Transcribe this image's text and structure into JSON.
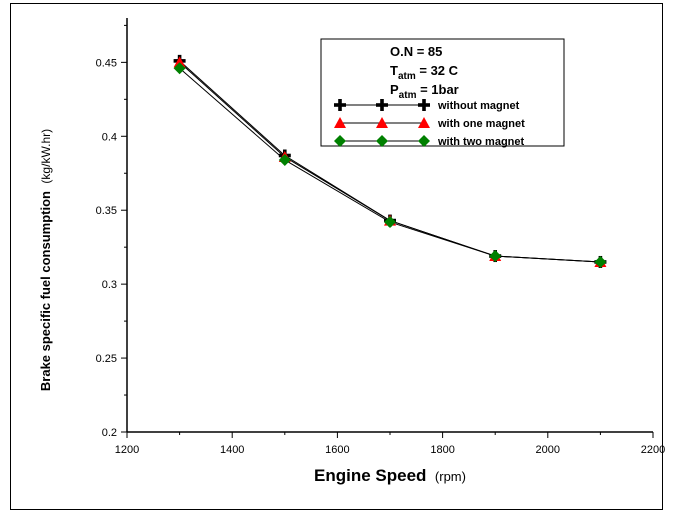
{
  "chart_data": {
    "type": "line",
    "xlabel": "Engine Speed",
    "xlabel_unit": "(rpm)",
    "ylabel": "Brake specific fuel consumption",
    "ylabel_unit": "(kg/kW.hr)",
    "xlim": [
      1200,
      2200
    ],
    "ylim": [
      0.2,
      0.48
    ],
    "xticks": [
      1200,
      1400,
      1600,
      1800,
      2000,
      2200
    ],
    "xtick_labels": [
      "1200",
      "1400",
      "1600",
      "1800",
      "2000",
      "2200"
    ],
    "yticks": [
      0.2,
      0.25,
      0.3,
      0.35,
      0.4,
      0.45
    ],
    "ytick_labels": [
      "0.2",
      "0.25",
      "0.3",
      "0.35",
      "0.4",
      "0.45"
    ],
    "grid": false,
    "legend_position": "top-right",
    "legend_header": {
      "on": "O.N = 85",
      "tatm_base": "T",
      "tatm_sub": "atm",
      "tatm_value": " = 32 C",
      "patm_base": "P",
      "patm_sub": "atm",
      "patm_value": " = 1bar"
    },
    "x": [
      1300,
      1500,
      1700,
      1900,
      2100
    ],
    "series": [
      {
        "name": "without magnet",
        "marker": "plus",
        "color": "#000000",
        "values": [
          0.451,
          0.387,
          0.343,
          0.319,
          0.315
        ]
      },
      {
        "name": "with one magnet",
        "marker": "triangle",
        "color": "#ff0000",
        "values": [
          0.45,
          0.386,
          0.343,
          0.319,
          0.315
        ]
      },
      {
        "name": "with two magnet",
        "marker": "diamond",
        "color": "#008000",
        "values": [
          0.446,
          0.384,
          0.342,
          0.319,
          0.315
        ]
      }
    ]
  }
}
